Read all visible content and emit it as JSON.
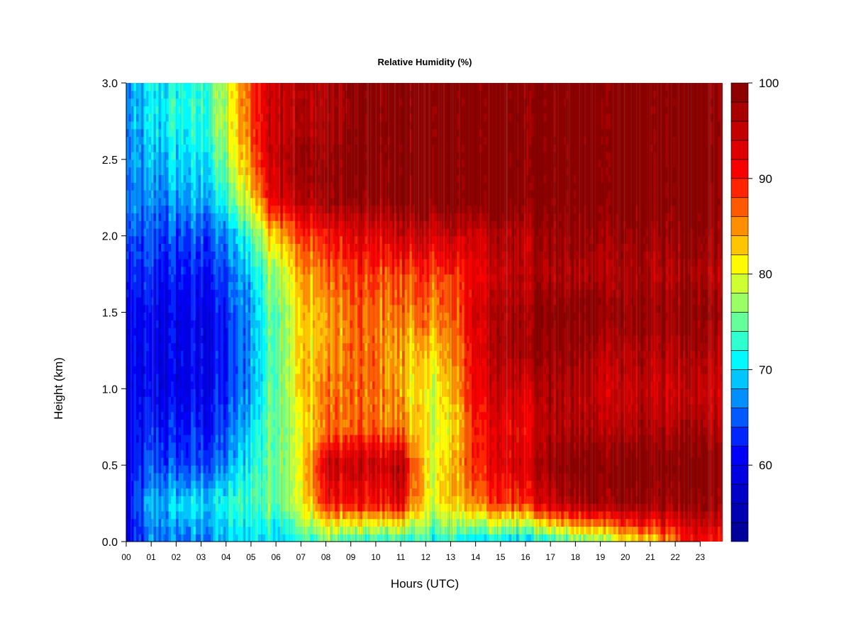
{
  "chart_data": {
    "type": "heatmap",
    "title": "Relative Humidity (%)",
    "xlabel": "Hours (UTC)",
    "ylabel": "Height (km)",
    "x_ticks": [
      "00",
      "01",
      "02",
      "03",
      "04",
      "05",
      "06",
      "07",
      "08",
      "09",
      "10",
      "11",
      "12",
      "13",
      "14",
      "15",
      "16",
      "17",
      "18",
      "19",
      "20",
      "21",
      "22",
      "23"
    ],
    "y_ticks": [
      "0.0",
      "0.5",
      "1.0",
      "1.5",
      "2.0",
      "2.5",
      "3.0"
    ],
    "xlim": [
      0,
      23.9
    ],
    "ylim": [
      0,
      3.0
    ],
    "x_hours": [
      0,
      1,
      2,
      3,
      4,
      5,
      6,
      7,
      8,
      9,
      10,
      11,
      12,
      13,
      14,
      15,
      16,
      17,
      18,
      19,
      20,
      21,
      22,
      23
    ],
    "y_heights": [
      0.0,
      0.25,
      0.5,
      0.75,
      1.0,
      1.25,
      1.5,
      1.75,
      2.0,
      2.25,
      2.5,
      2.75,
      3.0
    ],
    "z": [
      [
        58,
        66,
        66,
        66,
        68,
        70,
        70,
        72,
        74,
        72,
        72,
        72,
        72,
        72,
        70,
        70,
        70,
        72,
        74,
        76,
        80,
        82,
        86,
        90
      ],
      [
        60,
        68,
        70,
        70,
        72,
        74,
        76,
        80,
        90,
        90,
        90,
        92,
        80,
        82,
        86,
        88,
        90,
        94,
        96,
        98,
        98,
        98,
        98,
        98
      ],
      [
        60,
        64,
        64,
        64,
        66,
        72,
        76,
        80,
        94,
        94,
        94,
        96,
        80,
        82,
        90,
        92,
        94,
        98,
        100,
        100,
        100,
        100,
        100,
        100
      ],
      [
        60,
        62,
        62,
        62,
        64,
        70,
        76,
        80,
        86,
        86,
        86,
        86,
        80,
        80,
        90,
        92,
        92,
        96,
        96,
        96,
        96,
        96,
        96,
        96
      ],
      [
        60,
        60,
        60,
        60,
        62,
        68,
        76,
        82,
        86,
        86,
        86,
        84,
        80,
        82,
        92,
        94,
        94,
        96,
        96,
        94,
        94,
        94,
        94,
        94
      ],
      [
        60,
        60,
        60,
        60,
        62,
        68,
        76,
        82,
        84,
        86,
        86,
        84,
        82,
        84,
        92,
        96,
        98,
        98,
        98,
        96,
        96,
        96,
        96,
        96
      ],
      [
        60,
        60,
        60,
        60,
        62,
        68,
        76,
        82,
        84,
        86,
        86,
        86,
        86,
        86,
        94,
        96,
        98,
        100,
        100,
        100,
        98,
        98,
        98,
        98
      ],
      [
        62,
        62,
        62,
        62,
        64,
        70,
        78,
        84,
        86,
        88,
        88,
        88,
        88,
        88,
        92,
        94,
        96,
        96,
        96,
        96,
        96,
        96,
        96,
        96
      ],
      [
        64,
        64,
        64,
        64,
        66,
        74,
        84,
        88,
        90,
        92,
        92,
        94,
        94,
        94,
        94,
        96,
        96,
        98,
        98,
        98,
        98,
        98,
        98,
        98
      ],
      [
        66,
        66,
        68,
        68,
        72,
        82,
        94,
        96,
        98,
        98,
        98,
        100,
        100,
        100,
        100,
        100,
        100,
        100,
        100,
        100,
        100,
        100,
        100,
        100
      ],
      [
        66,
        68,
        70,
        70,
        76,
        86,
        96,
        98,
        98,
        100,
        100,
        100,
        100,
        100,
        100,
        100,
        100,
        100,
        100,
        100,
        100,
        100,
        100,
        100
      ],
      [
        66,
        70,
        72,
        72,
        78,
        88,
        96,
        96,
        96,
        98,
        100,
        100,
        100,
        100,
        100,
        100,
        100,
        100,
        100,
        100,
        100,
        100,
        100,
        100
      ],
      [
        66,
        70,
        72,
        72,
        78,
        88,
        96,
        96,
        96,
        98,
        100,
        100,
        100,
        100,
        100,
        100,
        100,
        100,
        100,
        100,
        100,
        100,
        100,
        100
      ]
    ],
    "zlim": [
      52,
      100
    ],
    "colorbar_ticks": [
      "60",
      "70",
      "80",
      "90",
      "100"
    ],
    "colorbar_levels": 24,
    "colormap": "jet",
    "colormap_colors": [
      "#00008f",
      "#0000ff",
      "#00ffff",
      "#ffff00",
      "#ff0000",
      "#800000"
    ],
    "grid": false,
    "legend": "colorbar-right"
  }
}
